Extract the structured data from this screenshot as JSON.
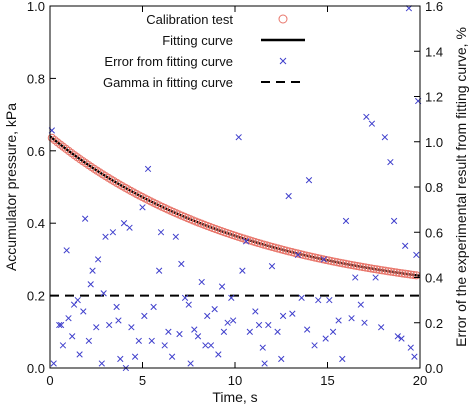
{
  "chart_data": {
    "type": "scatter",
    "title": "",
    "xlabel": "Time, s",
    "ylabel": "Accumulator pressure, kPa",
    "y2label": "Error of the experimental result from fitting curve, %",
    "xlim": [
      0,
      20
    ],
    "ylim": [
      0,
      1.0
    ],
    "y2lim": [
      0,
      1.6
    ],
    "xticks": [
      "0",
      "5",
      "10",
      "15",
      "20"
    ],
    "yticks": [
      "0.0",
      "0.2",
      "0.4",
      "0.6",
      "0.8",
      "1.0"
    ],
    "y2ticks": [
      "0.0",
      "0.2",
      "0.4",
      "0.6",
      "0.8",
      "1.0",
      "1.2",
      "1.4",
      "1.6"
    ],
    "grid": false,
    "legend_position": "top",
    "colors": {
      "calibration": "#e8756a",
      "fitting": "#000000",
      "error": "#3f3fcc",
      "gamma": "#000000"
    },
    "fit_model": {
      "form": "p = a*exp(-t/tau) + c",
      "a": 0.46,
      "tau": 11.0,
      "c": 0.18
    },
    "calibration_test": {
      "t_start": 0.1,
      "t_end": 19.8,
      "count": 130
    },
    "gamma_y": 0.2,
    "series": [
      {
        "name": "Calibration test",
        "axis": "left",
        "marker": "circle"
      },
      {
        "name": "Fitting curve",
        "axis": "left",
        "line": "solid"
      },
      {
        "name": "Error from fitting curve",
        "axis": "right",
        "marker": "x",
        "x": [
          0.1,
          0.2,
          0.5,
          0.6,
          0.7,
          0.9,
          1.0,
          1.2,
          1.3,
          1.5,
          1.6,
          1.8,
          1.9,
          2.1,
          2.2,
          2.3,
          2.5,
          2.6,
          2.8,
          2.9,
          3.0,
          3.2,
          3.4,
          3.6,
          3.7,
          3.8,
          4.0,
          4.1,
          4.3,
          4.4,
          4.6,
          4.8,
          5.0,
          5.1,
          5.3,
          5.5,
          5.6,
          5.9,
          6.0,
          6.2,
          6.4,
          6.6,
          6.8,
          7.0,
          7.1,
          7.3,
          7.5,
          7.6,
          7.8,
          8.0,
          8.2,
          8.4,
          8.5,
          8.7,
          8.9,
          9.1,
          9.3,
          9.4,
          9.6,
          9.8,
          9.9,
          10.2,
          10.4,
          10.6,
          10.8,
          11.1,
          11.3,
          11.5,
          11.6,
          11.8,
          12.0,
          12.3,
          12.5,
          12.6,
          12.9,
          13.1,
          13.4,
          13.6,
          13.9,
          14.0,
          14.3,
          14.5,
          14.8,
          14.9,
          15.1,
          15.3,
          15.6,
          15.8,
          16.0,
          16.3,
          16.5,
          16.8,
          17.0,
          17.1,
          17.4,
          17.6,
          17.9,
          18.1,
          18.4,
          18.6,
          18.8,
          19.0,
          19.2,
          19.4,
          19.5,
          19.7,
          19.8,
          19.9
        ],
        "y": [
          1.05,
          0.02,
          0.19,
          0.19,
          0.1,
          0.52,
          0.22,
          0.14,
          0.28,
          0.3,
          0.06,
          0.25,
          0.66,
          0.12,
          0.37,
          0.43,
          0.18,
          0.48,
          0.02,
          0.33,
          0.58,
          0.19,
          0.6,
          0.27,
          0.21,
          0.04,
          0.64,
          0.0,
          0.62,
          0.18,
          0.05,
          0.12,
          0.71,
          0.23,
          0.88,
          0.12,
          0.27,
          0.43,
          0.6,
          0.1,
          0.16,
          0.05,
          0.58,
          0.15,
          0.46,
          0.31,
          0.28,
          0.02,
          0.17,
          0.14,
          0.38,
          0.1,
          0.23,
          0.1,
          0.26,
          0.06,
          0.36,
          0.16,
          0.2,
          0.31,
          0.21,
          1.02,
          0.43,
          0.56,
          0.16,
          0.25,
          0.19,
          0.09,
          0.02,
          0.19,
          0.45,
          0.16,
          0.04,
          0.23,
          0.76,
          0.24,
          0.5,
          0.31,
          0.17,
          0.83,
          0.1,
          0.3,
          0.48,
          0.13,
          0.3,
          0.16,
          0.21,
          0.04,
          0.65,
          0.22,
          0.4,
          0.28,
          0.2,
          1.11,
          1.08,
          0.4,
          0.18,
          1.02,
          0.91,
          0.65,
          0.14,
          0.13,
          0.54,
          1.59,
          0.09,
          0.05,
          0.5,
          1.18
        ]
      },
      {
        "name": "Gamma in fitting curve",
        "axis": "left",
        "line": "dashed"
      }
    ],
    "legend": [
      {
        "label": "Calibration test",
        "marker": "circle"
      },
      {
        "label": "Fitting curve",
        "marker": "solid"
      },
      {
        "label": "Error from fitting curve",
        "marker": "x"
      },
      {
        "label": "Gamma in fitting curve",
        "marker": "dashed"
      }
    ]
  }
}
